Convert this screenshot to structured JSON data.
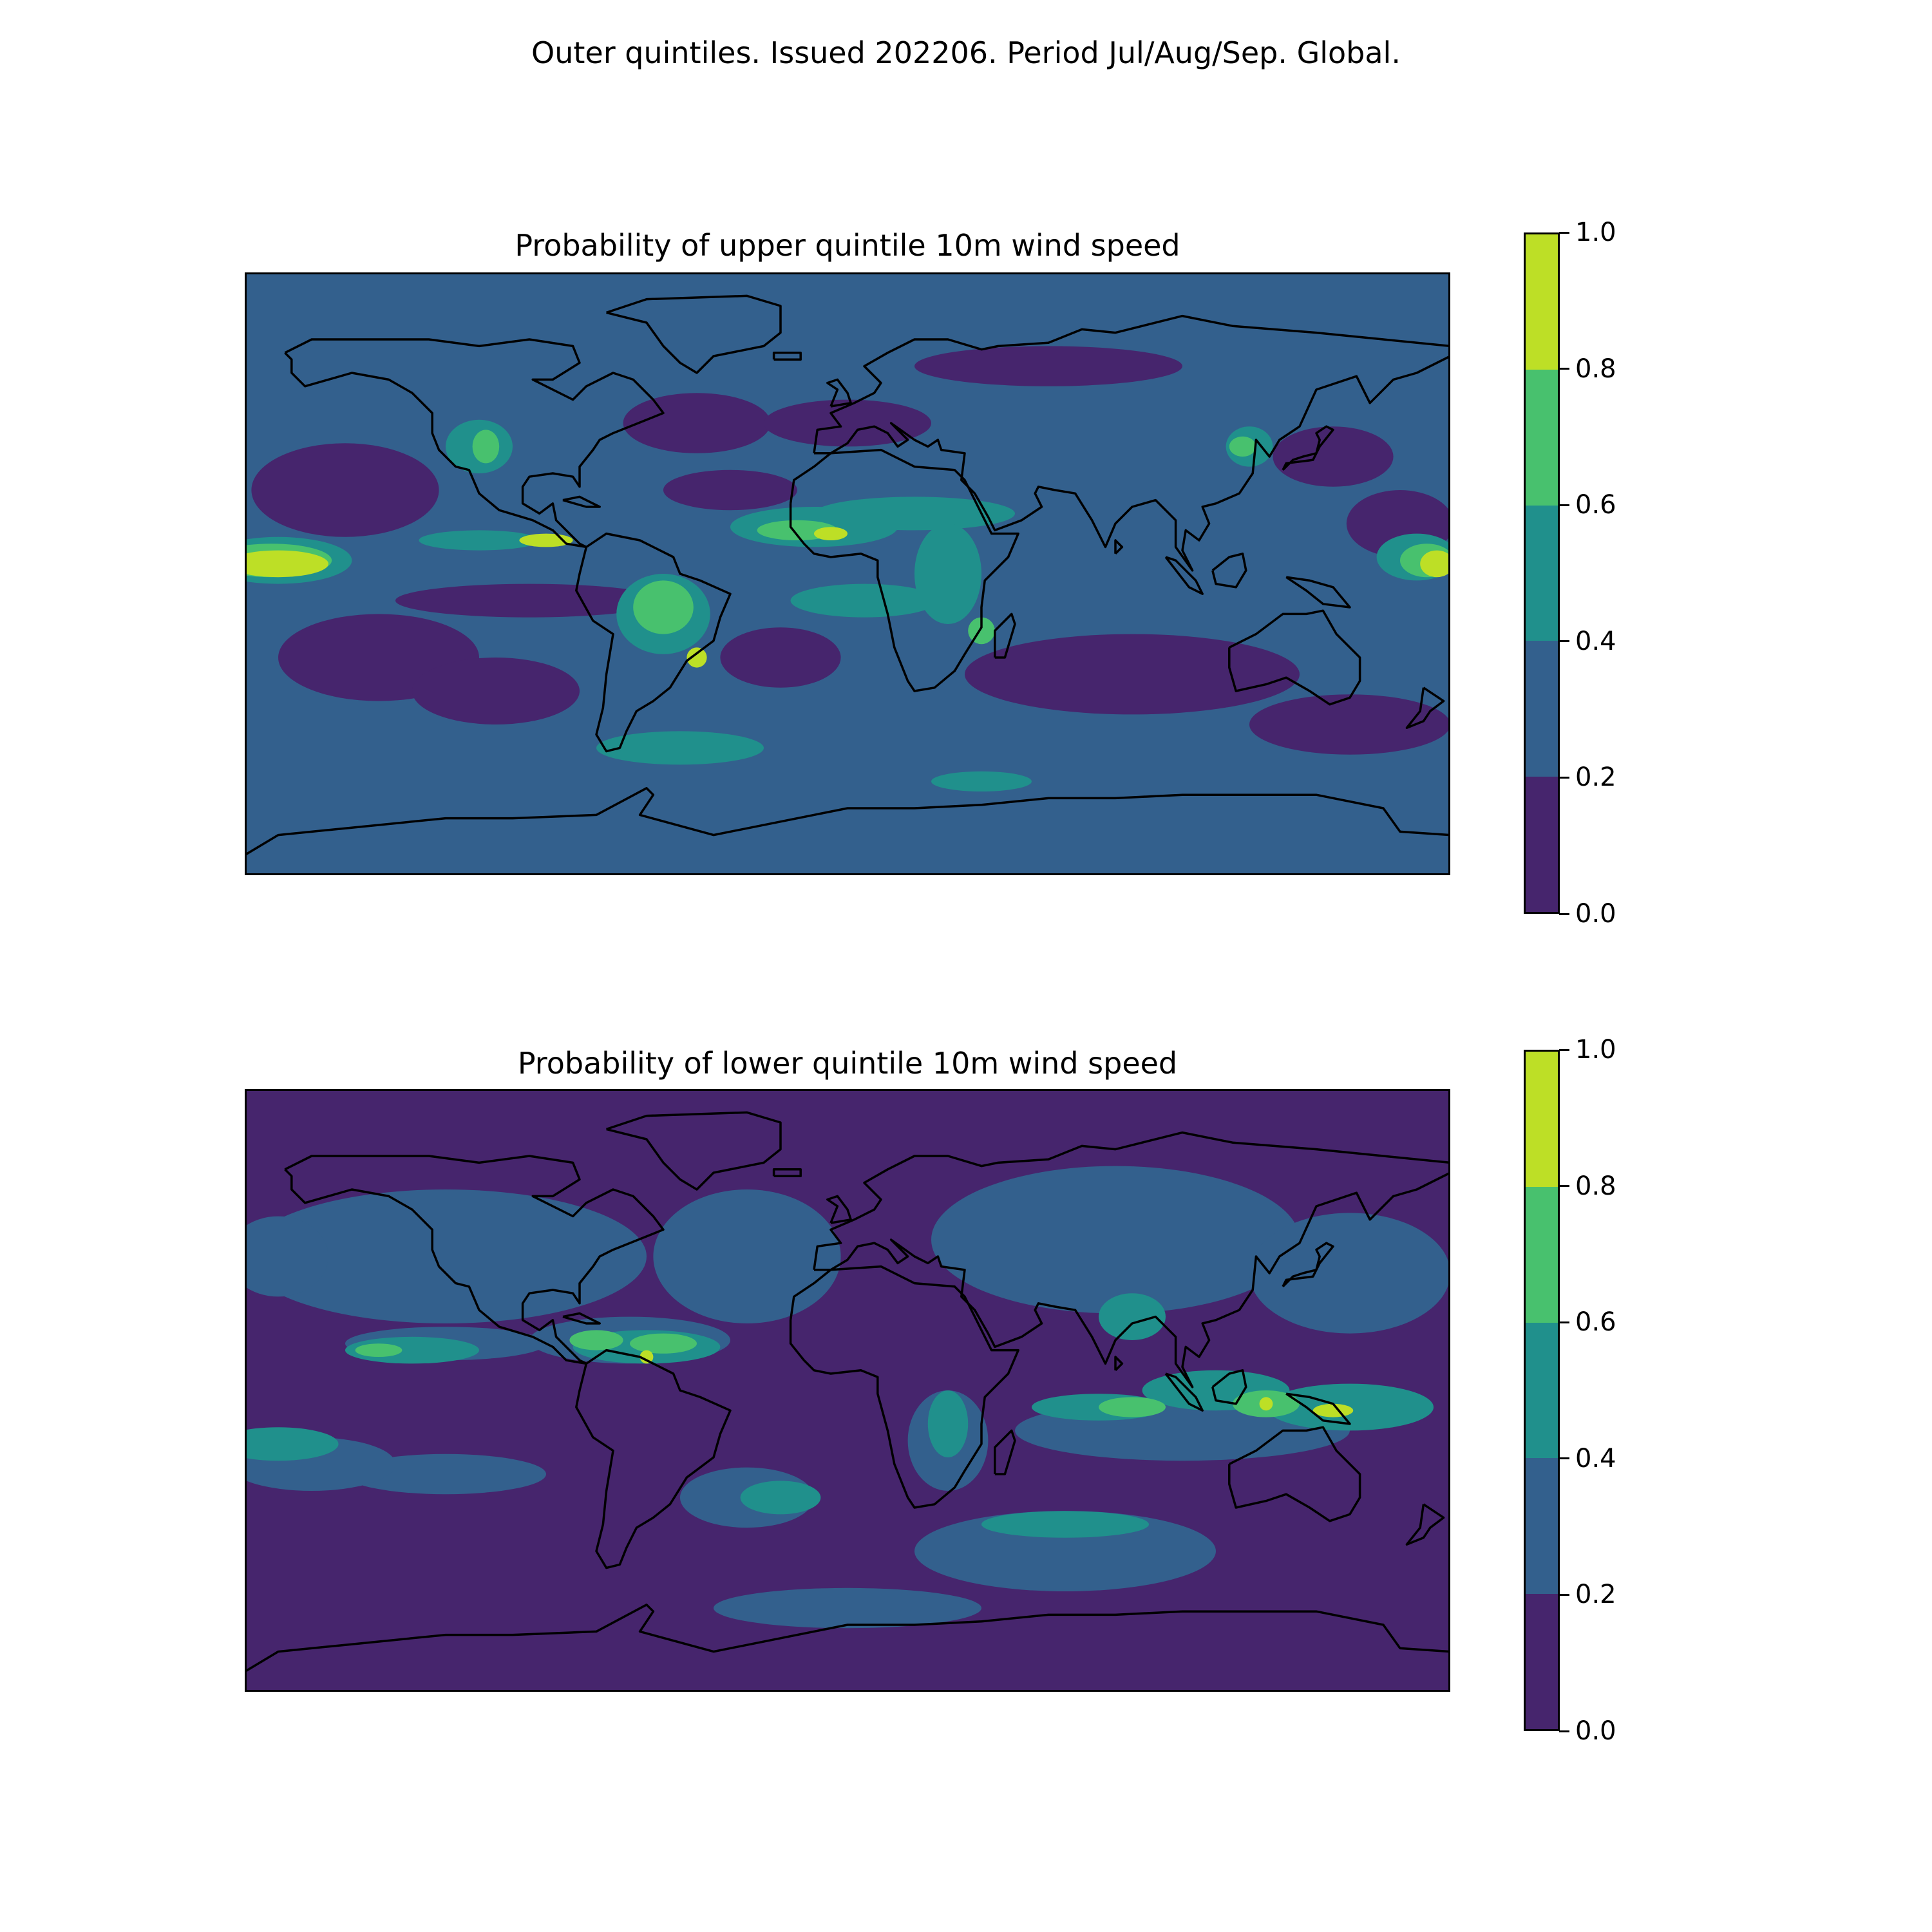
{
  "figure": {
    "title": "Outer quintiles. Issued 202206. Period Jul/Aug/Sep. Global."
  },
  "colorscale": {
    "levels": [
      0.0,
      0.2,
      0.4,
      0.6,
      0.8,
      1.0
    ],
    "tick_labels": [
      "0.0",
      "0.2",
      "0.4",
      "0.6",
      "0.8",
      "1.0"
    ],
    "colors": [
      "#46256d",
      "#33608d",
      "#20908c",
      "#48c16e",
      "#bddf26"
    ]
  },
  "panels": [
    {
      "title": "Probability of upper quintile 10m wind speed",
      "dominant_color_index": 1,
      "regions": [
        {
          "bin": 0,
          "lon": -150,
          "lat": 25,
          "rlon": 28,
          "rlat": 14
        },
        {
          "bin": 0,
          "lon": -140,
          "lat": -25,
          "rlon": 30,
          "rlat": 13
        },
        {
          "bin": 0,
          "lon": -105,
          "lat": -35,
          "rlon": 25,
          "rlat": 10
        },
        {
          "bin": 0,
          "lon": -45,
          "lat": 45,
          "rlon": 22,
          "rlat": 9
        },
        {
          "bin": 0,
          "lon": -35,
          "lat": 25,
          "rlon": 20,
          "rlat": 6
        },
        {
          "bin": 0,
          "lon": -20,
          "lat": -25,
          "rlon": 18,
          "rlat": 9
        },
        {
          "bin": 0,
          "lon": 0,
          "lat": 45,
          "rlon": 25,
          "rlat": 7
        },
        {
          "bin": 0,
          "lon": 85,
          "lat": -30,
          "rlon": 50,
          "rlat": 12
        },
        {
          "bin": 0,
          "lon": 150,
          "lat": -45,
          "rlon": 30,
          "rlat": 9
        },
        {
          "bin": 0,
          "lon": 165,
          "lat": 15,
          "rlon": 16,
          "rlat": 10
        },
        {
          "bin": 0,
          "lon": 60,
          "lat": 62,
          "rlon": 40,
          "rlat": 6
        },
        {
          "bin": 0,
          "lon": -95,
          "lat": -8,
          "rlon": 40,
          "rlat": 5
        },
        {
          "bin": 0,
          "lon": 145,
          "lat": 35,
          "rlon": 18,
          "rlat": 9
        },
        {
          "bin": 2,
          "lon": -170,
          "lat": 4,
          "rlon": 22,
          "rlat": 7
        },
        {
          "bin": 2,
          "lon": -110,
          "lat": 10,
          "rlon": 18,
          "rlat": 3
        },
        {
          "bin": 2,
          "lon": -110,
          "lat": 38,
          "rlon": 10,
          "rlat": 8
        },
        {
          "bin": 2,
          "lon": -55,
          "lat": -12,
          "rlon": 14,
          "rlat": 12
        },
        {
          "bin": 2,
          "lon": -10,
          "lat": 14,
          "rlon": 25,
          "rlat": 6
        },
        {
          "bin": 2,
          "lon": 5,
          "lat": -8,
          "rlon": 22,
          "rlat": 5
        },
        {
          "bin": 2,
          "lon": 20,
          "lat": 18,
          "rlon": 30,
          "rlat": 5
        },
        {
          "bin": 2,
          "lon": 30,
          "lat": 0,
          "rlon": 10,
          "rlat": 15
        },
        {
          "bin": 2,
          "lon": -50,
          "lat": -52,
          "rlon": 25,
          "rlat": 5
        },
        {
          "bin": 2,
          "lon": 40,
          "lat": -62,
          "rlon": 15,
          "rlat": 3
        },
        {
          "bin": 2,
          "lon": 120,
          "lat": 38,
          "rlon": 7,
          "rlat": 6
        },
        {
          "bin": 2,
          "lon": 170,
          "lat": 5,
          "rlon": 12,
          "rlat": 7
        },
        {
          "bin": 3,
          "lon": -172,
          "lat": 4,
          "rlon": 18,
          "rlat": 5
        },
        {
          "bin": 3,
          "lon": -108,
          "lat": 38,
          "rlon": 4,
          "rlat": 5
        },
        {
          "bin": 3,
          "lon": -55,
          "lat": -10,
          "rlon": 9,
          "rlat": 8
        },
        {
          "bin": 3,
          "lon": -15,
          "lat": 13,
          "rlon": 12,
          "rlat": 3
        },
        {
          "bin": 3,
          "lon": 40,
          "lat": -17,
          "rlon": 4,
          "rlat": 4
        },
        {
          "bin": 3,
          "lon": 118,
          "lat": 38,
          "rlon": 4,
          "rlat": 3
        },
        {
          "bin": 3,
          "lon": 173,
          "lat": 4,
          "rlon": 8,
          "rlat": 5
        },
        {
          "bin": 4,
          "lon": -170,
          "lat": 3,
          "rlon": 15,
          "rlat": 4
        },
        {
          "bin": 4,
          "lon": -90,
          "lat": 10,
          "rlon": 8,
          "rlat": 2
        },
        {
          "bin": 4,
          "lon": -45,
          "lat": -25,
          "rlon": 3,
          "rlat": 3
        },
        {
          "bin": 4,
          "lon": -5,
          "lat": 12,
          "rlon": 5,
          "rlat": 2
        },
        {
          "bin": 4,
          "lon": 176,
          "lat": 3,
          "rlon": 5,
          "rlat": 4
        }
      ]
    },
    {
      "title": "Probability of lower quintile 10m wind speed",
      "dominant_color_index": 0,
      "regions": [
        {
          "bin": 1,
          "lon": -120,
          "lat": 40,
          "rlon": 60,
          "rlat": 20
        },
        {
          "bin": 1,
          "lon": -30,
          "lat": 40,
          "rlon": 28,
          "rlat": 20
        },
        {
          "bin": 1,
          "lon": 80,
          "lat": 45,
          "rlon": 55,
          "rlat": 22
        },
        {
          "bin": 1,
          "lon": 150,
          "lat": 35,
          "rlon": 30,
          "rlat": 18
        },
        {
          "bin": 1,
          "lon": -170,
          "lat": 40,
          "rlon": 15,
          "rlat": 12
        },
        {
          "bin": 1,
          "lon": -120,
          "lat": -25,
          "rlon": 30,
          "rlat": 6
        },
        {
          "bin": 1,
          "lon": -30,
          "lat": -32,
          "rlon": 20,
          "rlat": 9
        },
        {
          "bin": 1,
          "lon": 65,
          "lat": -48,
          "rlon": 45,
          "rlat": 12
        },
        {
          "bin": 1,
          "lon": 100,
          "lat": -12,
          "rlon": 50,
          "rlat": 9
        },
        {
          "bin": 1,
          "lon": -160,
          "lat": -22,
          "rlon": 25,
          "rlat": 8
        },
        {
          "bin": 1,
          "lon": 0,
          "lat": -65,
          "rlon": 40,
          "rlat": 6
        },
        {
          "bin": 1,
          "lon": 30,
          "lat": -15,
          "rlon": 12,
          "rlat": 15
        },
        {
          "bin": 1,
          "lon": -65,
          "lat": 15,
          "rlon": 30,
          "rlat": 7
        },
        {
          "bin": 1,
          "lon": -120,
          "lat": 14,
          "rlon": 30,
          "rlat": 5
        },
        {
          "bin": 2,
          "lon": -170,
          "lat": -16,
          "rlon": 18,
          "rlat": 5
        },
        {
          "bin": 2,
          "lon": -130,
          "lat": 12,
          "rlon": 20,
          "rlat": 4
        },
        {
          "bin": 2,
          "lon": -60,
          "lat": 13,
          "rlon": 22,
          "rlat": 5
        },
        {
          "bin": 2,
          "lon": -20,
          "lat": -32,
          "rlon": 12,
          "rlat": 5
        },
        {
          "bin": 2,
          "lon": 85,
          "lat": 22,
          "rlon": 10,
          "rlat": 7
        },
        {
          "bin": 2,
          "lon": 110,
          "lat": 0,
          "rlon": 22,
          "rlat": 6
        },
        {
          "bin": 2,
          "lon": 150,
          "lat": -5,
          "rlon": 25,
          "rlat": 7
        },
        {
          "bin": 2,
          "lon": 75,
          "lat": -5,
          "rlon": 20,
          "rlat": 4
        },
        {
          "bin": 2,
          "lon": 65,
          "lat": -40,
          "rlon": 25,
          "rlat": 4
        },
        {
          "bin": 2,
          "lon": 30,
          "lat": -10,
          "rlon": 6,
          "rlat": 10
        },
        {
          "bin": 3,
          "lon": -55,
          "lat": 14,
          "rlon": 10,
          "rlat": 3
        },
        {
          "bin": 3,
          "lon": -75,
          "lat": 15,
          "rlon": 8,
          "rlat": 3
        },
        {
          "bin": 3,
          "lon": -140,
          "lat": 12,
          "rlon": 7,
          "rlat": 2
        },
        {
          "bin": 3,
          "lon": 85,
          "lat": -5,
          "rlon": 10,
          "rlat": 3
        },
        {
          "bin": 3,
          "lon": 125,
          "lat": -4,
          "rlon": 10,
          "rlat": 4
        },
        {
          "bin": 4,
          "lon": -60,
          "lat": 10,
          "rlon": 2,
          "rlat": 2
        },
        {
          "bin": 4,
          "lon": 145,
          "lat": -6,
          "rlon": 6,
          "rlat": 2
        },
        {
          "bin": 4,
          "lon": 125,
          "lat": -4,
          "rlon": 2,
          "rlat": 2
        }
      ]
    }
  ]
}
